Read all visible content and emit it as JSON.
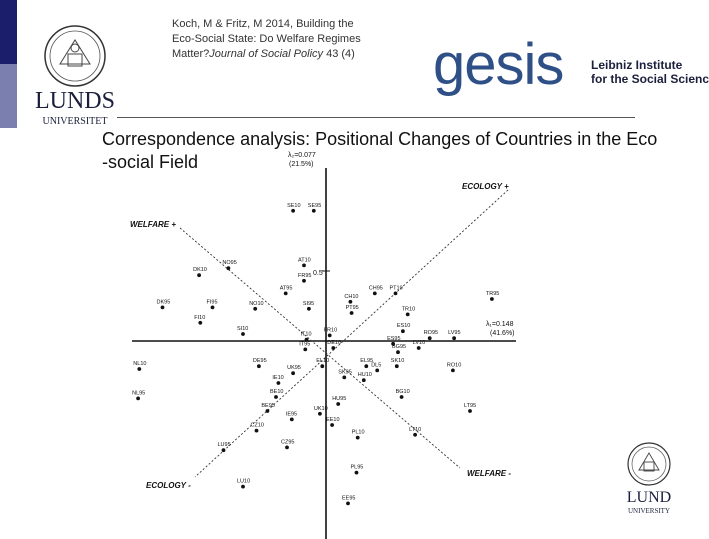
{
  "citation": {
    "line1": "Koch, M & Fritz, M 2014, Building the",
    "line2": "Eco-Social State: Do Welfare Regimes",
    "line3_prefix": "Matter?",
    "line3_journal": "Journal of Social Policy",
    "line3_suffix": " 43 (4)"
  },
  "logos": {
    "gesis_word": "gesis",
    "gesis_sub1": "Leibniz Institute",
    "gesis_sub2": "for the Social Sciences",
    "lund_top_name": "LUNDS",
    "lund_top_sub": "UNIVERSITET",
    "lund_bottom_name": "LUND",
    "lund_bottom_sub": "UNIVERSITY"
  },
  "title": {
    "line1": "Correspondence analysis: Positional Changes of Countries in the Eco",
    "line2": "-social Field"
  },
  "chart_data": {
    "type": "scatter",
    "axis_labels": {
      "lambda2": "λ₂=0.077",
      "lambda2_pct": "(21.5%)",
      "lambda1": "λ₁=0.148",
      "lambda1_pct": "(41.6%)",
      "tick_05": "0.5",
      "ecology_plus": "ECOLOGY +",
      "ecology_minus": "ECOLOGY -",
      "welfare_plus": "WELFARE +",
      "welfare_minus": "WELFARE -"
    },
    "points": [
      {
        "label": "SE10",
        "x": -0.27,
        "y": 0.93
      },
      {
        "label": "SE95",
        "x": -0.1,
        "y": 0.93
      },
      {
        "label": "DK10",
        "x": -1.04,
        "y": 0.47
      },
      {
        "label": "NO95",
        "x": -0.8,
        "y": 0.52
      },
      {
        "label": "AT10",
        "x": -0.18,
        "y": 0.54
      },
      {
        "label": "FR95",
        "x": -0.18,
        "y": 0.43
      },
      {
        "label": "AT95",
        "x": -0.33,
        "y": 0.34
      },
      {
        "label": "CH95",
        "x": 0.4,
        "y": 0.34
      },
      {
        "label": "PT10",
        "x": 0.57,
        "y": 0.34
      },
      {
        "label": "CH10",
        "x": 0.2,
        "y": 0.28
      },
      {
        "label": "TR95",
        "x": 1.36,
        "y": 0.3
      },
      {
        "label": "DK95",
        "x": -1.34,
        "y": 0.24
      },
      {
        "label": "FI95",
        "x": -0.93,
        "y": 0.24
      },
      {
        "label": "NO10",
        "x": -0.58,
        "y": 0.23
      },
      {
        "label": "SI95",
        "x": -0.14,
        "y": 0.23
      },
      {
        "label": "PT95",
        "x": 0.21,
        "y": 0.2
      },
      {
        "label": "TR10",
        "x": 0.67,
        "y": 0.19
      },
      {
        "label": "FI10",
        "x": -1.03,
        "y": 0.13
      },
      {
        "label": "SI10",
        "x": -0.68,
        "y": 0.05
      },
      {
        "label": "ES10",
        "x": 0.63,
        "y": 0.07
      },
      {
        "label": "FR10",
        "x": 0.03,
        "y": 0.04
      },
      {
        "label": "RO95",
        "x": 0.85,
        "y": 0.02
      },
      {
        "label": "LV95",
        "x": 1.05,
        "y": 0.02
      },
      {
        "label": "IT10",
        "x": -0.16,
        "y": 0.01
      },
      {
        "label": "ES95",
        "x": 0.55,
        "y": -0.02
      },
      {
        "label": "DE10",
        "x": 0.06,
        "y": -0.05
      },
      {
        "label": "IT95",
        "x": -0.17,
        "y": -0.06
      },
      {
        "label": "BG95",
        "x": 0.59,
        "y": -0.08
      },
      {
        "label": "LV10",
        "x": 0.76,
        "y": -0.05
      },
      {
        "label": "NL10",
        "x": -1.53,
        "y": -0.2
      },
      {
        "label": "DE95",
        "x": -0.55,
        "y": -0.18
      },
      {
        "label": "EL10",
        "x": -0.03,
        "y": -0.18
      },
      {
        "label": "EL95",
        "x": 0.33,
        "y": -0.18
      },
      {
        "label": "SK10",
        "x": 0.58,
        "y": -0.18
      },
      {
        "label": "RO10",
        "x": 1.04,
        "y": -0.21
      },
      {
        "label": "UK95",
        "x": -0.27,
        "y": -0.23
      },
      {
        "label": "DL5",
        "x": 0.42,
        "y": -0.21
      },
      {
        "label": "SK95",
        "x": 0.15,
        "y": -0.26
      },
      {
        "label": "HU10",
        "x": 0.31,
        "y": -0.28
      },
      {
        "label": "IE10",
        "x": -0.39,
        "y": -0.3
      },
      {
        "label": "NL95",
        "x": -1.54,
        "y": -0.41
      },
      {
        "label": "BE10",
        "x": -0.41,
        "y": -0.4
      },
      {
        "label": "BG10",
        "x": 0.62,
        "y": -0.4
      },
      {
        "label": "HU95",
        "x": 0.1,
        "y": -0.45
      },
      {
        "label": "BE95",
        "x": -0.48,
        "y": -0.5
      },
      {
        "label": "UK10",
        "x": -0.05,
        "y": -0.52
      },
      {
        "label": "LT95",
        "x": 1.18,
        "y": -0.5
      },
      {
        "label": "IE95",
        "x": -0.28,
        "y": -0.56
      },
      {
        "label": "EE10",
        "x": 0.05,
        "y": -0.6
      },
      {
        "label": "CZ10",
        "x": -0.57,
        "y": -0.64
      },
      {
        "label": "PL10",
        "x": 0.26,
        "y": -0.69
      },
      {
        "label": "LT10",
        "x": 0.73,
        "y": -0.67
      },
      {
        "label": "CZ95",
        "x": -0.32,
        "y": -0.76
      },
      {
        "label": "LU95",
        "x": -0.84,
        "y": -0.78
      },
      {
        "label": "PL95",
        "x": 0.25,
        "y": -0.94
      },
      {
        "label": "LU10",
        "x": -0.68,
        "y": -1.04
      },
      {
        "label": "EE95",
        "x": 0.18,
        "y": -1.16
      }
    ]
  },
  "colors": {
    "left_bar_dark": "#1b1f6b",
    "left_bar_light": "#7a7fb0",
    "gesis_blue": "#2f4f87",
    "title_text": "#111111"
  }
}
